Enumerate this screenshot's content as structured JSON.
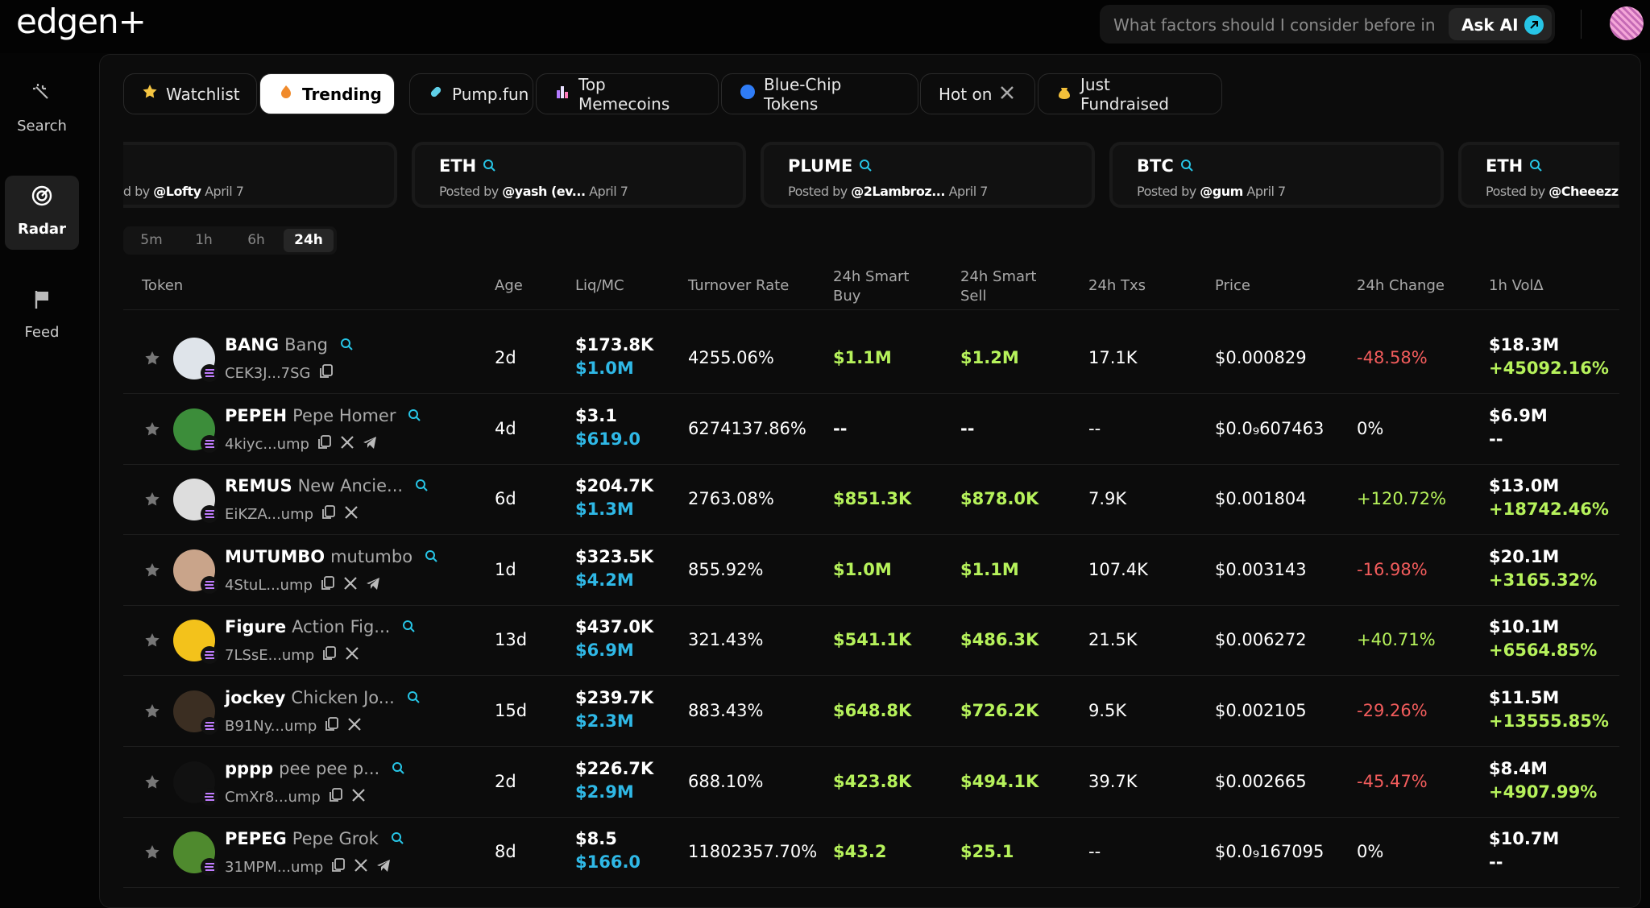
{
  "header": {
    "logo": "edgen+",
    "search_placeholder": "What factors should I consider before inves",
    "ask_button": "Ask AI"
  },
  "sidebar": {
    "items": [
      "Search",
      "Radar",
      "Feed"
    ],
    "active": 1
  },
  "tabs": {
    "items": [
      "Watchlist",
      "Trending",
      "Pump.fun",
      "Top Memecoins",
      "Blue-Chip Tokens",
      "Hot on",
      "Just Fundraised"
    ],
    "active": 1
  },
  "posts": [
    {
      "posted_by": "Posted by",
      "user": "@Lofty",
      "date": "April 7"
    },
    {
      "symbol": "ETH",
      "posted_by": "Posted by",
      "user": "@yash (ev...",
      "date": "April 7"
    },
    {
      "symbol": "PLUME",
      "posted_by": "Posted by",
      "user": "@2Lambroz...",
      "date": "April 7"
    },
    {
      "symbol": "BTC",
      "posted_by": "Posted by",
      "user": "@gum",
      "date": "April 7"
    },
    {
      "symbol": "ETH",
      "posted_by": "Posted by",
      "user": "@Cheeezz",
      "date": "April 7"
    }
  ],
  "timeframes": {
    "items": [
      "5m",
      "1h",
      "6h",
      "24h"
    ],
    "active": 3
  },
  "table": {
    "columns": [
      "Token",
      "Age",
      "Liq/MC",
      "Turnover Rate",
      "24h Smart Buy",
      "24h Smart Sell",
      "24h Txs",
      "Price",
      "24h Change",
      "1h Vol∆"
    ],
    "rows": [
      {
        "symbol": "BANG",
        "name": "Bang",
        "address": "CEK3J...7SG",
        "age": "2d",
        "liq": "$173.8K",
        "mc": "$1.0M",
        "turnover": "4255.06%",
        "smart_buy": "$1.1M",
        "smart_sell": "$1.2M",
        "txs": "17.1K",
        "price": "$0.000829",
        "change": "-48.58%",
        "vol": "$18.3M",
        "vol_change": "+45092.16%"
      },
      {
        "symbol": "PEPEH",
        "name": "Pepe Homer",
        "address": "4kiyc...ump",
        "age": "4d",
        "liq": "$3.1",
        "mc": "$619.0",
        "turnover": "6274137.86%",
        "smart_buy": "--",
        "smart_sell": "--",
        "txs": "--",
        "price": "$0.0₉607463",
        "change": "0%",
        "vol": "$6.9M",
        "vol_change": "--"
      },
      {
        "symbol": "REMUS",
        "name": "New Ancie...",
        "address": "EiKZA...ump",
        "age": "6d",
        "liq": "$204.7K",
        "mc": "$1.3M",
        "turnover": "2763.08%",
        "smart_buy": "$851.3K",
        "smart_sell": "$878.0K",
        "txs": "7.9K",
        "price": "$0.001804",
        "change": "+120.72%",
        "vol": "$13.0M",
        "vol_change": "+18742.46%"
      },
      {
        "symbol": "MUTUMBO",
        "name": "mutumbo",
        "address": "4StuL...ump",
        "age": "1d",
        "liq": "$323.5K",
        "mc": "$4.2M",
        "turnover": "855.92%",
        "smart_buy": "$1.0M",
        "smart_sell": "$1.1M",
        "txs": "107.4K",
        "price": "$0.003143",
        "change": "-16.98%",
        "vol": "$20.1M",
        "vol_change": "+3165.32%"
      },
      {
        "symbol": "Figure",
        "name": "Action Fig...",
        "address": "7LSsE...ump",
        "age": "13d",
        "liq": "$437.0K",
        "mc": "$6.9M",
        "turnover": "321.43%",
        "smart_buy": "$541.1K",
        "smart_sell": "$486.3K",
        "txs": "21.5K",
        "price": "$0.006272",
        "change": "+40.71%",
        "vol": "$10.1M",
        "vol_change": "+6564.85%"
      },
      {
        "symbol": "jockey",
        "name": "Chicken Jo...",
        "address": "B91Ny...ump",
        "age": "15d",
        "liq": "$239.7K",
        "mc": "$2.3M",
        "turnover": "883.43%",
        "smart_buy": "$648.8K",
        "smart_sell": "$726.2K",
        "txs": "9.5K",
        "price": "$0.002105",
        "change": "-29.26%",
        "vol": "$11.5M",
        "vol_change": "+13555.85%"
      },
      {
        "symbol": "pppp",
        "name": "pee pee p...",
        "address": "CmXr8...ump",
        "age": "2d",
        "liq": "$226.7K",
        "mc": "$2.9M",
        "turnover": "688.10%",
        "smart_buy": "$423.8K",
        "smart_sell": "$494.1K",
        "txs": "39.7K",
        "price": "$0.002665",
        "change": "-45.47%",
        "vol": "$8.4M",
        "vol_change": "+4907.99%"
      },
      {
        "symbol": "PEPEG",
        "name": "Pepe Grok",
        "address": "31MPM...ump",
        "age": "8d",
        "liq": "$8.5",
        "mc": "$166.0",
        "turnover": "11802357.70%",
        "smart_buy": "$43.2",
        "smart_sell": "$25.1",
        "txs": "--",
        "price": "$0.0₉167095",
        "change": "0%",
        "vol": "$10.7M",
        "vol_change": "--"
      }
    ]
  }
}
